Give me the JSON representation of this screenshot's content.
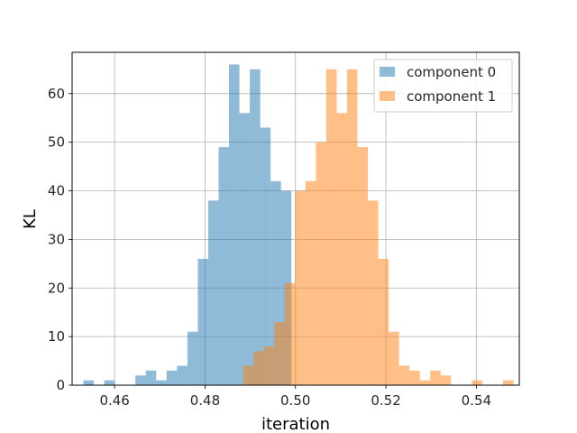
{
  "chart_data": {
    "type": "bar",
    "xlabel": "iteration",
    "ylabel": "KL",
    "xlim": [
      0.4506,
      0.5495
    ],
    "ylim": [
      0,
      68.5
    ],
    "xticks": [
      0.46,
      0.48,
      0.5,
      0.52,
      0.54
    ],
    "xtick_labels": [
      "0.46",
      "0.48",
      "0.50",
      "0.52",
      "0.54"
    ],
    "yticks": [
      0,
      10,
      20,
      30,
      40,
      50,
      60
    ],
    "ytick_labels": [
      "0",
      "10",
      "20",
      "30",
      "40",
      "50",
      "60"
    ],
    "grid": true,
    "legend": {
      "placement": "top-right"
    },
    "series": [
      {
        "name": "component 0",
        "color": "#1f77b4",
        "opacity": 0.5,
        "bin_edges": [
          0.4531,
          0.4554,
          0.4577,
          0.46,
          0.4623,
          0.4646,
          0.4669,
          0.4692,
          0.4715,
          0.4738,
          0.4761,
          0.4784,
          0.4807,
          0.483,
          0.4853,
          0.4876,
          0.4899,
          0.4922,
          0.4945,
          0.4968,
          0.4991
        ],
        "counts": [
          1,
          0,
          1,
          0,
          0,
          2,
          3,
          1,
          3,
          4,
          11,
          26,
          38,
          49,
          66,
          56,
          65,
          53,
          42,
          40
        ]
      },
      {
        "name": "component 1",
        "color": "#ff7f0e",
        "opacity": 0.5,
        "bin_edges": [
          0.4884,
          0.4907,
          0.493,
          0.4953,
          0.4976,
          0.4999,
          0.5022,
          0.5045,
          0.5068,
          0.5091,
          0.5114,
          0.5137,
          0.516,
          0.5183,
          0.5206,
          0.5229,
          0.5252,
          0.5275,
          0.5298,
          0.5321,
          0.5344,
          0.5367,
          0.539,
          0.5413,
          0.5436,
          0.5459,
          0.5482
        ],
        "counts": [
          4,
          7,
          8,
          13,
          21,
          40,
          42,
          50,
          65,
          56,
          65,
          49,
          38,
          26,
          11,
          4,
          3,
          1,
          3,
          2,
          0,
          0,
          1,
          0,
          0,
          1
        ]
      }
    ]
  },
  "colors": {
    "grid": "#b0b0b0",
    "spine": "#000000",
    "legend_border": "#cccccc"
  }
}
